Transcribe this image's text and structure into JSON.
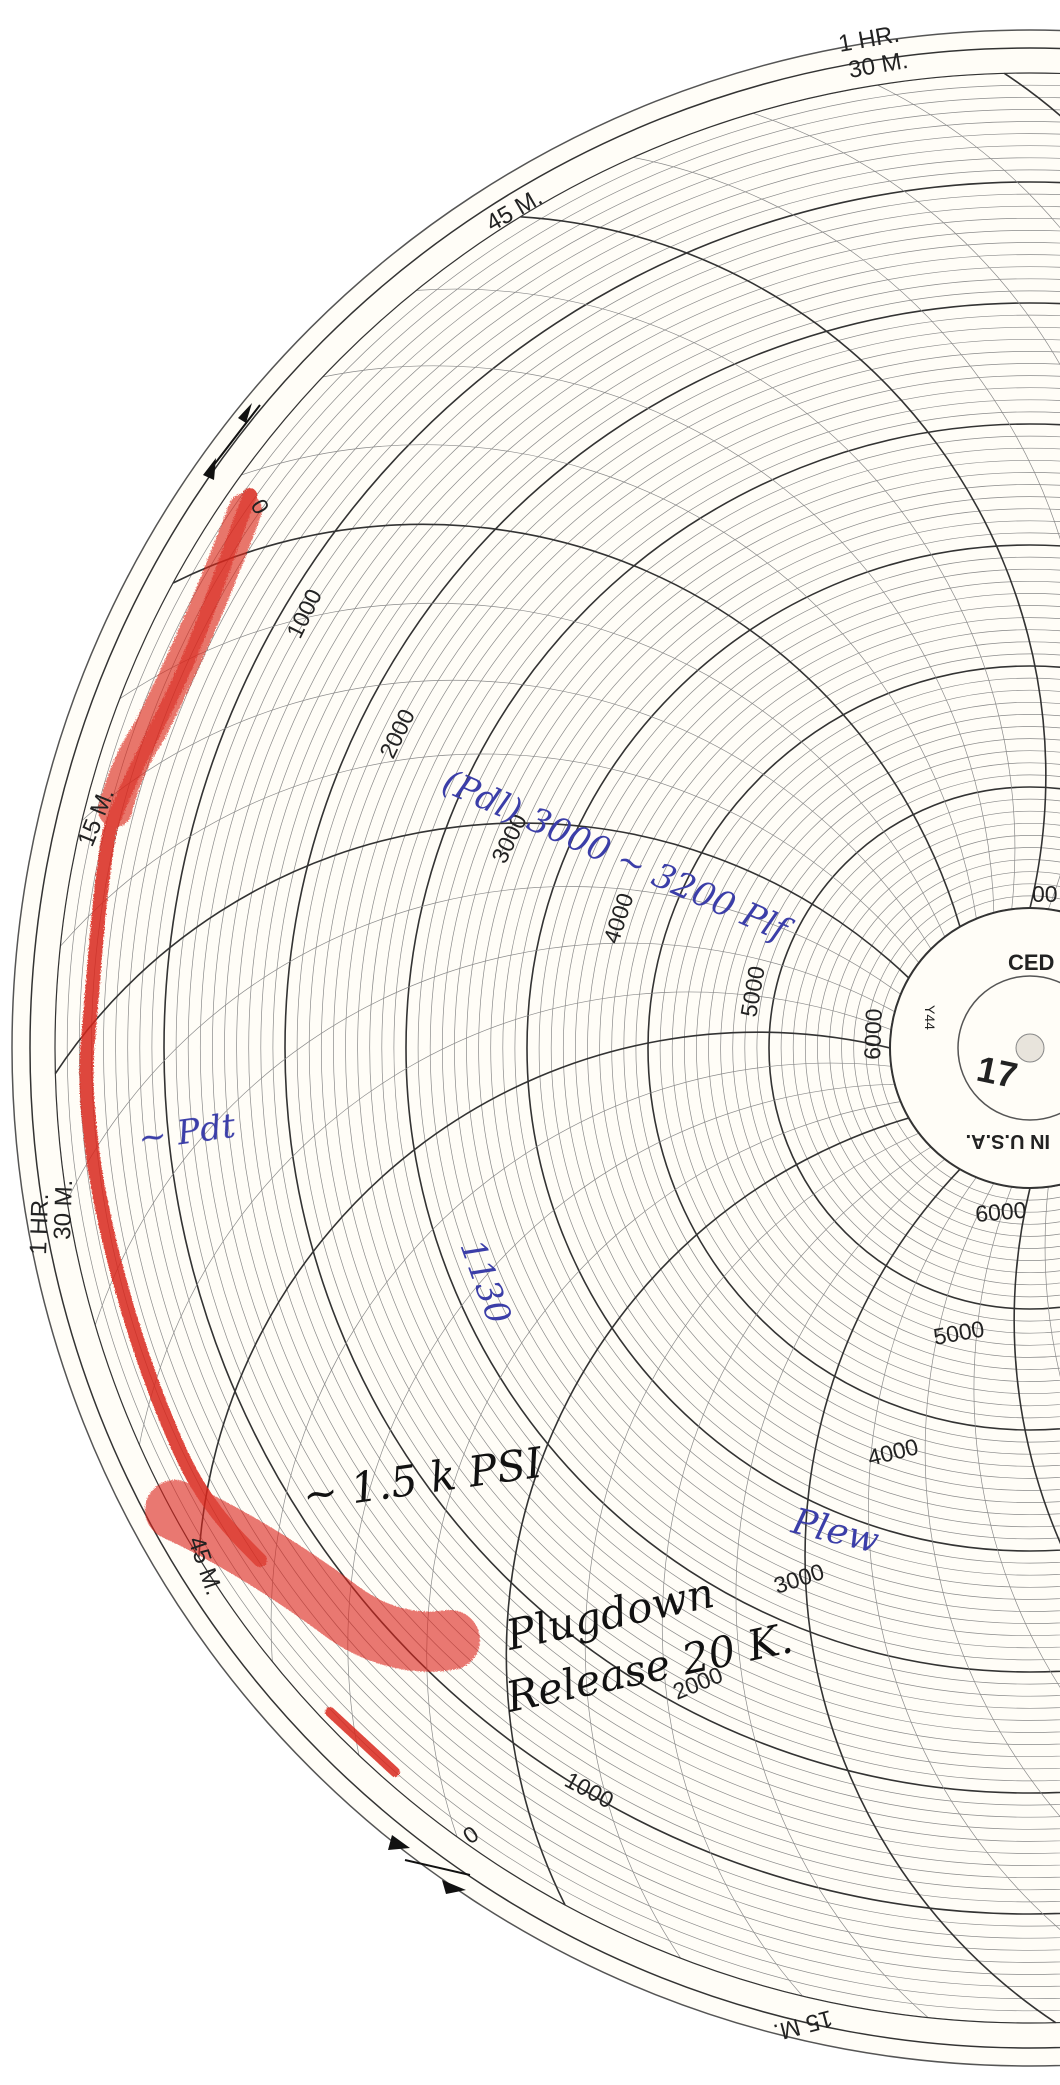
{
  "chart": {
    "time_scale": {
      "unit_labels": [
        "1 HR.",
        "30 M.",
        "45 M.",
        "15 M.",
        "1 HR.",
        "30 M.",
        "45 M.",
        "15 M."
      ]
    },
    "pressure_scale_upper": [
      "0",
      "1000",
      "2000",
      "3000",
      "4000",
      "5000",
      "6000"
    ],
    "pressure_scale_lower": [
      "6000",
      "5000",
      "4000",
      "3000",
      "2000",
      "1000",
      "0"
    ],
    "partial_right_label": "00",
    "hub": {
      "brand_fragment": "CED",
      "model_code": "Y44",
      "origin_text": "IN U.S.A.",
      "chart_number": "17"
    },
    "pen_trace_color": "#d9261c"
  },
  "annotations": {
    "upper_handwritten": "(Pdl) 3000 ~ 3200 Plf",
    "left_handwritten": "~ Pdt",
    "middle_handwritten": "1130",
    "black_note_1": "~ 1.5 k PSI",
    "black_note_2_line1": "Plugdown",
    "black_note_2_line2": "Release 20 K.",
    "lower_right_handwritten": "Plew"
  }
}
